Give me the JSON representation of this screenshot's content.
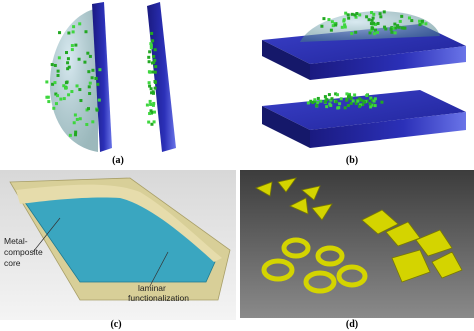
{
  "panels": [
    {
      "label": "(a)"
    },
    {
      "label": "(b)"
    },
    {
      "label": "(c)"
    },
    {
      "label": "(d)"
    }
  ],
  "annotations": {
    "core": [
      "Metal-",
      "composite",
      "core"
    ],
    "laminar": [
      "laminar",
      "functionalization"
    ]
  }
}
